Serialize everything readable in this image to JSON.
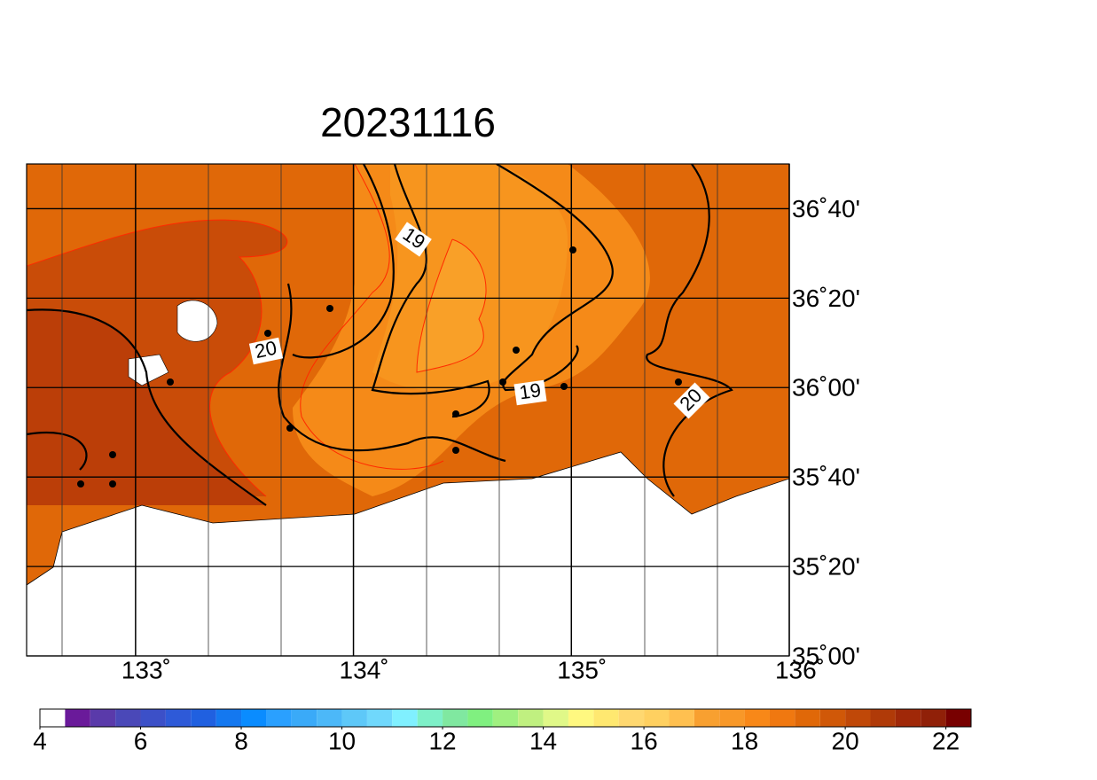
{
  "chart_data": {
    "type": "map",
    "title": "20231116",
    "xlim": [
      132.5,
      136
    ],
    "ylim": [
      35,
      36.8333
    ],
    "xticks": [
      {
        "value": 133,
        "label": "133˚"
      },
      {
        "value": 134,
        "label": "134˚"
      },
      {
        "value": 135,
        "label": "135˚"
      },
      {
        "value": 136,
        "label": "136˚"
      }
    ],
    "yticks": [
      {
        "value": 35,
        "label": "35˚00'"
      },
      {
        "value": 35.3333,
        "label": "35˚20'"
      },
      {
        "value": 35.6667,
        "label": "35˚40'"
      },
      {
        "value": 36,
        "label": "36˚00'"
      },
      {
        "value": 36.3333,
        "label": "36˚20'"
      },
      {
        "value": 36.6667,
        "label": "36˚40'"
      }
    ],
    "contour_labels": [
      19,
      20,
      19,
      20
    ],
    "colorbar": {
      "range": [
        4,
        22.5
      ],
      "ticks": [
        4,
        6,
        8,
        10,
        12,
        14,
        16,
        18,
        20,
        22
      ],
      "colors": [
        "#ffffff",
        "#6a1a9a",
        "#5a3aaa",
        "#4a48b8",
        "#3c50c8",
        "#2e5ad8",
        "#2060e0",
        "#1478f0",
        "#0a8cff",
        "#2aa0ff",
        "#3aaaf8",
        "#4cb8f8",
        "#5ec8f8",
        "#70d8fc",
        "#80f0ff",
        "#7ef0c8",
        "#80e8a0",
        "#80f080",
        "#a0f080",
        "#c0f080",
        "#e0f888",
        "#fff880",
        "#ffe870",
        "#ffd870",
        "#ffd060",
        "#ffc050",
        "#f8a030",
        "#f89828",
        "#f88818",
        "#f07810",
        "#e06808",
        "#d05808",
        "#c04808",
        "#b03a08",
        "#a02808",
        "#902008",
        "#780000"
      ]
    }
  }
}
